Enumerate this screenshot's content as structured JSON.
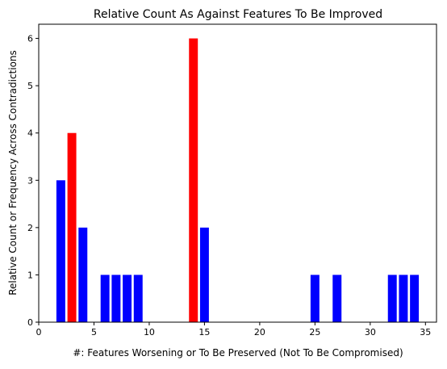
{
  "chart_data": {
    "type": "bar",
    "title": "Relative Count As Against Features To Be Improved",
    "xlabel": "#: Features Worsening or To Be Preserved (Not To Be Compromised)",
    "ylabel": "Relative Count or Frequency Across Contradictions",
    "xlim": [
      0,
      36
    ],
    "ylim": [
      0,
      6.3
    ],
    "xticks": [
      0,
      5,
      10,
      15,
      20,
      25,
      30,
      35
    ],
    "yticks": [
      0,
      1,
      2,
      3,
      4,
      5,
      6
    ],
    "grid": false,
    "bar_width": 0.8,
    "colors": {
      "default": "#0000ff",
      "highlight": "#ff0000"
    },
    "bars": [
      {
        "x": 2,
        "value": 3,
        "color": "#0000ff"
      },
      {
        "x": 3,
        "value": 4,
        "color": "#ff0000"
      },
      {
        "x": 4,
        "value": 2,
        "color": "#0000ff"
      },
      {
        "x": 6,
        "value": 1,
        "color": "#0000ff"
      },
      {
        "x": 7,
        "value": 1,
        "color": "#0000ff"
      },
      {
        "x": 8,
        "value": 1,
        "color": "#0000ff"
      },
      {
        "x": 9,
        "value": 1,
        "color": "#0000ff"
      },
      {
        "x": 14,
        "value": 6,
        "color": "#ff0000"
      },
      {
        "x": 15,
        "value": 2,
        "color": "#0000ff"
      },
      {
        "x": 25,
        "value": 1,
        "color": "#0000ff"
      },
      {
        "x": 27,
        "value": 1,
        "color": "#0000ff"
      },
      {
        "x": 32,
        "value": 1,
        "color": "#0000ff"
      },
      {
        "x": 33,
        "value": 1,
        "color": "#0000ff"
      },
      {
        "x": 34,
        "value": 1,
        "color": "#0000ff"
      }
    ]
  }
}
